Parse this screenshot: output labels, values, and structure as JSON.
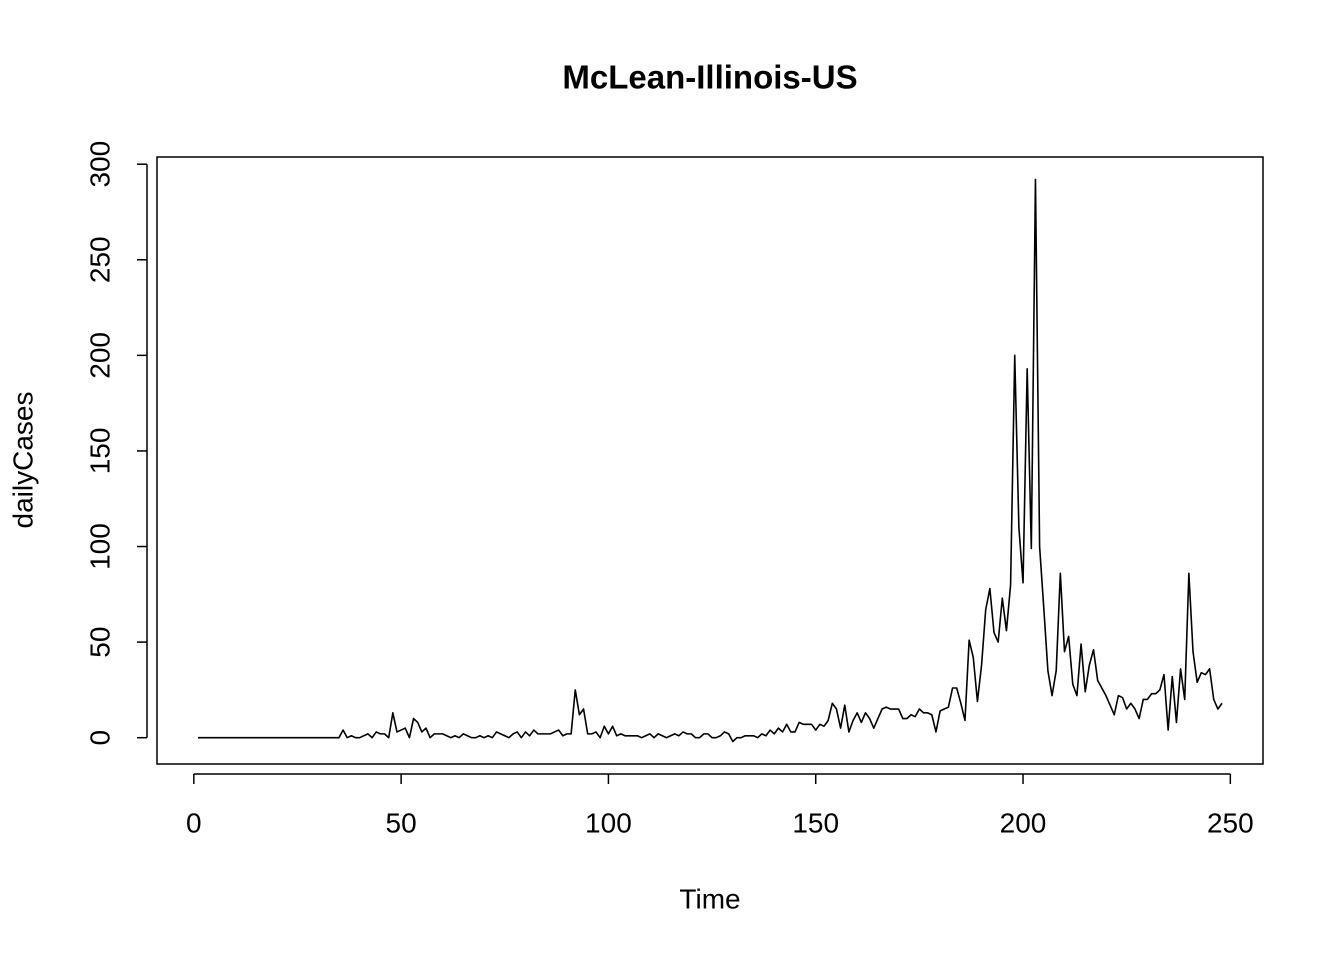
{
  "chart_data": {
    "type": "line",
    "title": "McLean-Illinois-US",
    "xlabel": "Time",
    "ylabel": "dailyCases",
    "color": "#000000",
    "x": [
      1,
      2,
      3,
      4,
      5,
      6,
      7,
      8,
      9,
      10,
      11,
      12,
      13,
      14,
      15,
      16,
      17,
      18,
      19,
      20,
      21,
      22,
      23,
      24,
      25,
      26,
      27,
      28,
      29,
      30,
      31,
      32,
      33,
      34,
      35,
      36,
      37,
      38,
      39,
      40,
      41,
      42,
      43,
      44,
      45,
      46,
      47,
      48,
      49,
      50,
      51,
      52,
      53,
      54,
      55,
      56,
      57,
      58,
      59,
      60,
      61,
      62,
      63,
      64,
      65,
      66,
      67,
      68,
      69,
      70,
      71,
      72,
      73,
      74,
      75,
      76,
      77,
      78,
      79,
      80,
      81,
      82,
      83,
      84,
      85,
      86,
      87,
      88,
      89,
      90,
      91,
      92,
      93,
      94,
      95,
      96,
      97,
      98,
      99,
      100,
      101,
      102,
      103,
      104,
      105,
      106,
      107,
      108,
      109,
      110,
      111,
      112,
      113,
      114,
      115,
      116,
      117,
      118,
      119,
      120,
      121,
      122,
      123,
      124,
      125,
      126,
      127,
      128,
      129,
      130,
      131,
      132,
      133,
      134,
      135,
      136,
      137,
      138,
      139,
      140,
      141,
      142,
      143,
      144,
      145,
      146,
      147,
      148,
      149,
      150,
      151,
      152,
      153,
      154,
      155,
      156,
      157,
      158,
      159,
      160,
      161,
      162,
      163,
      164,
      165,
      166,
      167,
      168,
      169,
      170,
      171,
      172,
      173,
      174,
      175,
      176,
      177,
      178,
      179,
      180,
      181,
      182,
      183,
      184,
      185,
      186,
      187,
      188,
      189,
      190,
      191,
      192,
      193,
      194,
      195,
      196,
      197,
      198,
      199,
      200,
      201,
      202,
      203,
      204,
      205,
      206,
      207,
      208,
      209,
      210,
      211,
      212,
      213,
      214,
      215,
      216,
      217,
      218,
      219,
      220,
      221,
      222,
      223,
      224,
      225,
      226,
      227,
      228,
      229,
      230,
      231,
      232,
      233,
      234,
      235,
      236,
      237,
      238,
      239,
      240,
      241,
      242,
      243,
      244,
      245,
      246,
      247,
      248
    ],
    "values": [
      0,
      0,
      0,
      0,
      0,
      0,
      0,
      0,
      0,
      0,
      0,
      0,
      0,
      0,
      0,
      0,
      0,
      0,
      0,
      0,
      0,
      0,
      0,
      0,
      0,
      0,
      0,
      0,
      0,
      0,
      0,
      0,
      0,
      0,
      0,
      4,
      0,
      1,
      0,
      0,
      1,
      2,
      0,
      3,
      2,
      2,
      0,
      13,
      3,
      4,
      5,
      0,
      10,
      8,
      3,
      5,
      0,
      2,
      2,
      2,
      1,
      0,
      1,
      0,
      2,
      1,
      0,
      0,
      1,
      0,
      1,
      0,
      3,
      2,
      1,
      0,
      2,
      3,
      0,
      3,
      1,
      4,
      2,
      2,
      2,
      2,
      3,
      4,
      1,
      2,
      2,
      25,
      12,
      15,
      2,
      2,
      3,
      0,
      6,
      2,
      6,
      1,
      2,
      1,
      1,
      1,
      1,
      0,
      1,
      2,
      0,
      2,
      1,
      0,
      1,
      2,
      1,
      3,
      2,
      2,
      0,
      0,
      2,
      2,
      0,
      0,
      1,
      3,
      2,
      -2,
      0,
      0,
      1,
      1,
      1,
      0,
      2,
      1,
      4,
      2,
      5,
      3,
      7,
      3,
      3,
      8,
      7,
      7,
      7,
      4,
      7,
      6,
      9,
      18,
      15,
      5,
      17,
      3,
      9,
      13,
      8,
      13,
      10,
      5,
      10,
      15,
      16,
      15,
      15,
      15,
      10,
      10,
      12,
      11,
      15,
      13,
      13,
      12,
      3,
      14,
      15,
      16,
      26,
      26,
      18,
      9,
      51,
      42,
      19,
      38,
      67,
      78,
      55,
      50,
      73,
      56,
      80,
      200,
      110,
      81,
      193,
      99,
      292,
      100,
      68,
      35,
      22,
      35,
      86,
      45,
      53,
      28,
      22,
      49,
      24,
      38,
      46,
      30,
      26,
      22,
      17,
      12,
      22,
      21,
      15,
      18,
      15,
      10,
      20,
      20,
      23,
      23,
      25,
      33,
      4,
      32,
      8,
      36,
      20,
      86,
      45,
      29,
      34,
      33,
      36,
      20,
      15,
      18
    ],
    "xlim": [
      -8.88,
      257.88
    ],
    "ylim": [
      -13.76,
      303.76
    ],
    "xticks": [
      0,
      50,
      100,
      150,
      200,
      250
    ],
    "yticks": [
      0,
      50,
      100,
      150,
      200,
      250,
      300
    ]
  }
}
